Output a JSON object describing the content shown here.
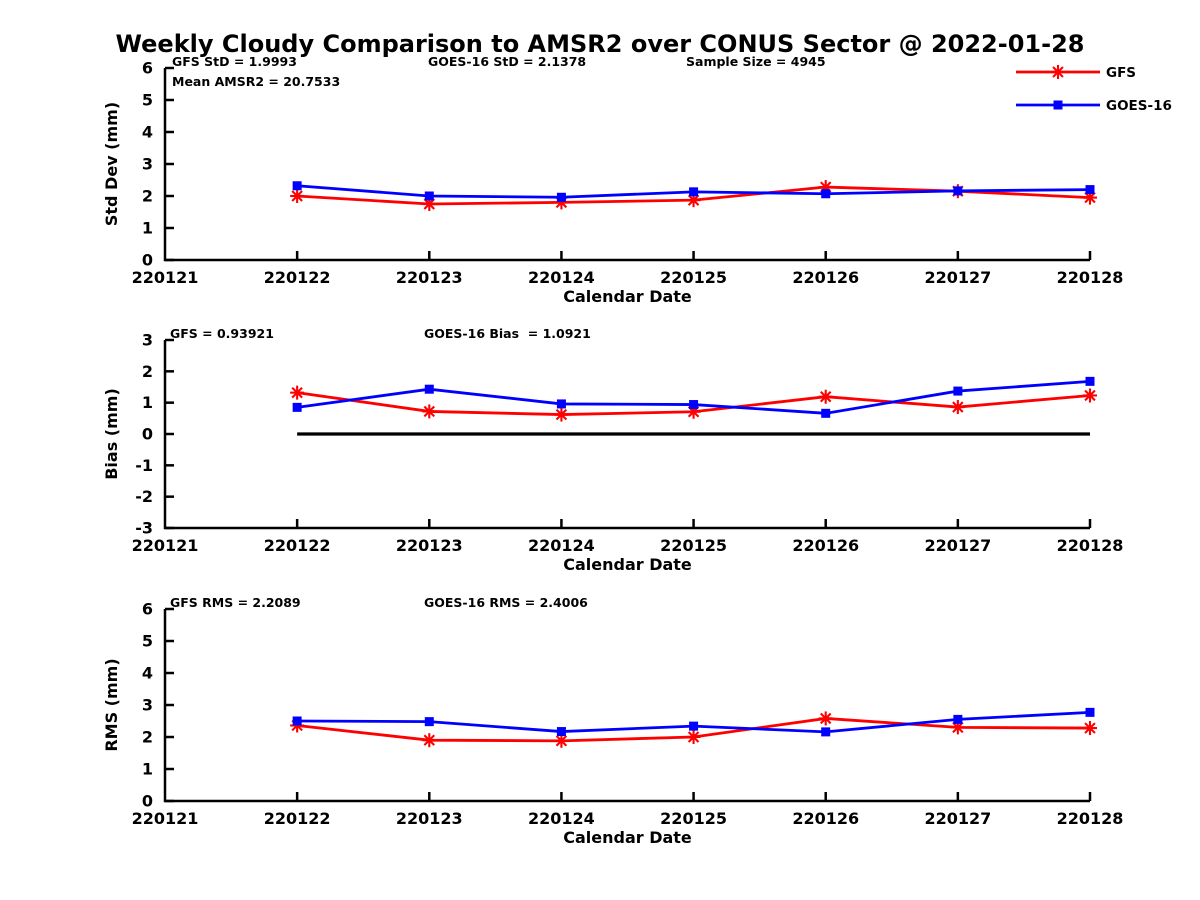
{
  "title": "Weekly Cloudy Comparison to AMSR2 over CONUS Sector @ 2022-01-28",
  "colors": {
    "gfs": "#ff0000",
    "goes16": "#0000ff",
    "axis": "#000000",
    "background": "#ffffff"
  },
  "legend": {
    "position": "top-right",
    "entries": [
      {
        "label": "GFS",
        "color": "#ff0000",
        "marker": "asterisk"
      },
      {
        "label": "GOES-16",
        "color": "#0000ff",
        "marker": "square"
      }
    ]
  },
  "chart_data": [
    {
      "type": "line",
      "name": "stddev",
      "x": [
        220122,
        220123,
        220124,
        220125,
        220126,
        220127,
        220128
      ],
      "xlim": [
        220121,
        220128
      ],
      "xticks": [
        220121,
        220122,
        220123,
        220124,
        220125,
        220126,
        220127,
        220128
      ],
      "xlabel": "Calendar Date",
      "ylabel": "Std Dev (mm)",
      "ylim": [
        0,
        6
      ],
      "yticks": [
        0,
        1,
        2,
        3,
        4,
        5,
        6
      ],
      "grid": false,
      "series": [
        {
          "name": "GFS",
          "color": "#ff0000",
          "marker": "asterisk",
          "values": [
            2.0,
            1.75,
            1.8,
            1.87,
            2.28,
            2.15,
            1.95
          ]
        },
        {
          "name": "GOES-16",
          "color": "#0000ff",
          "marker": "square",
          "values": [
            2.32,
            2.0,
            1.96,
            2.13,
            2.07,
            2.16,
            2.2
          ]
        }
      ],
      "annotations": [
        "GFS StD = 1.9993",
        "Mean AMSR2 = 20.7533",
        "GOES-16 StD = 2.1378",
        "Sample Size = 4945"
      ],
      "zero_line": false
    },
    {
      "type": "line",
      "name": "bias",
      "x": [
        220122,
        220123,
        220124,
        220125,
        220126,
        220127,
        220128
      ],
      "xlim": [
        220121,
        220128
      ],
      "xticks": [
        220121,
        220122,
        220123,
        220124,
        220125,
        220126,
        220127,
        220128
      ],
      "xlabel": "Calendar Date",
      "ylabel": "Bias (mm)",
      "ylim": [
        -3,
        3
      ],
      "yticks": [
        -3,
        -2,
        -1,
        0,
        1,
        2,
        3
      ],
      "grid": false,
      "series": [
        {
          "name": "GFS",
          "color": "#ff0000",
          "marker": "asterisk",
          "values": [
            1.32,
            0.72,
            0.62,
            0.71,
            1.19,
            0.86,
            1.23
          ]
        },
        {
          "name": "GOES-16",
          "color": "#0000ff",
          "marker": "square",
          "values": [
            0.85,
            1.43,
            0.96,
            0.94,
            0.66,
            1.37,
            1.68
          ]
        }
      ],
      "annotations": [
        "GFS = 0.93921",
        "GOES-16 Bias  = 1.0921"
      ],
      "zero_line": true
    },
    {
      "type": "line",
      "name": "rms",
      "x": [
        220122,
        220123,
        220124,
        220125,
        220126,
        220127,
        220128
      ],
      "xlim": [
        220121,
        220128
      ],
      "xticks": [
        220121,
        220122,
        220123,
        220124,
        220125,
        220126,
        220127,
        220128
      ],
      "xlabel": "Calendar Date",
      "ylabel": "RMS (mm)",
      "ylim": [
        0,
        6
      ],
      "yticks": [
        0,
        1,
        2,
        3,
        4,
        5,
        6
      ],
      "grid": false,
      "series": [
        {
          "name": "GFS",
          "color": "#ff0000",
          "marker": "asterisk",
          "values": [
            2.36,
            1.9,
            1.88,
            2.0,
            2.58,
            2.3,
            2.28
          ]
        },
        {
          "name": "GOES-16",
          "color": "#0000ff",
          "marker": "square",
          "values": [
            2.5,
            2.48,
            2.17,
            2.34,
            2.16,
            2.55,
            2.77
          ]
        }
      ],
      "annotations": [
        "GFS RMS = 2.2089",
        "GOES-16 RMS = 2.4006"
      ],
      "zero_line": false
    }
  ]
}
